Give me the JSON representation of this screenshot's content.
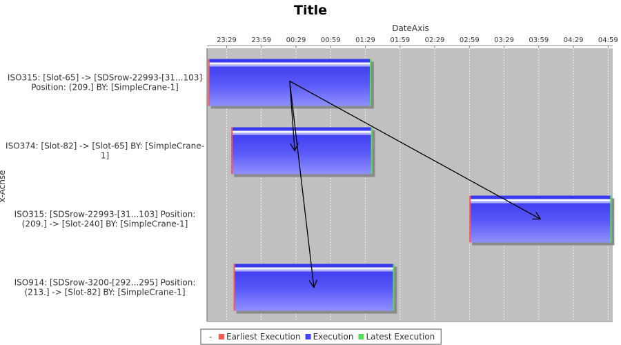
{
  "chart_data": {
    "type": "gantt",
    "title": "Title",
    "xlabel": "DateAxis",
    "ylabel": "x-Achse",
    "x_ticks": [
      "23:29",
      "23:59",
      "00:29",
      "00:59",
      "01:29",
      "01:59",
      "02:29",
      "02:59",
      "03:29",
      "03:59",
      "04:29",
      "04:59"
    ],
    "x_range": [
      "23:12",
      "05:03"
    ],
    "grid": true,
    "legend_position": "bottom",
    "legend": [
      {
        "key": "earliest",
        "label": "Earliest Execution",
        "color": "#ff5555"
      },
      {
        "key": "execution",
        "label": "Execution",
        "color": "#4444ff"
      },
      {
        "key": "latest",
        "label": "Latest Execution",
        "color": "#55dd55"
      }
    ],
    "legend_prefix": "-",
    "tasks": [
      {
        "label_lines": [
          "ISO315: [Slot-65] -> [SDSrow-22993-[31...103]",
          "Position: (209.] BY: [SimpleCrane-1]"
        ],
        "earliest": "23:13",
        "start": "23:13",
        "end": "01:34",
        "latest": "01:34"
      },
      {
        "label_lines": [
          "ISO374: [Slot-82] -> [Slot-65] BY: [SimpleCrane-",
          "1]"
        ],
        "earliest": "23:33",
        "start": "23:33",
        "end": "01:35",
        "latest": "01:35"
      },
      {
        "label_lines": [
          "ISO315: [SDSrow-22993-[31...103]  Position:",
          "(209.] -> [Slot-240] BY: [SimpleCrane-1]"
        ],
        "earliest": "02:59",
        "start": "02:59",
        "end": "05:02",
        "latest": "05:02"
      },
      {
        "label_lines": [
          "ISO914: [SDSrow-3200-[292...295]  Position:",
          "(213.] -> [Slot-82] BY: [SimpleCrane-1]"
        ],
        "earliest": "23:35",
        "start": "23:35",
        "end": "01:54",
        "latest": "01:54"
      }
    ],
    "dependencies": [
      {
        "from": 0,
        "to": 1
      },
      {
        "from": 0,
        "to": 2
      },
      {
        "from": 0,
        "to": 3
      }
    ],
    "colors": {
      "plot_background": "#c0c0c0",
      "grid": "#ffffff",
      "bar_top": "#4040f0",
      "bar_bottom": "#8a8aff",
      "arrow": "#000000"
    }
  }
}
